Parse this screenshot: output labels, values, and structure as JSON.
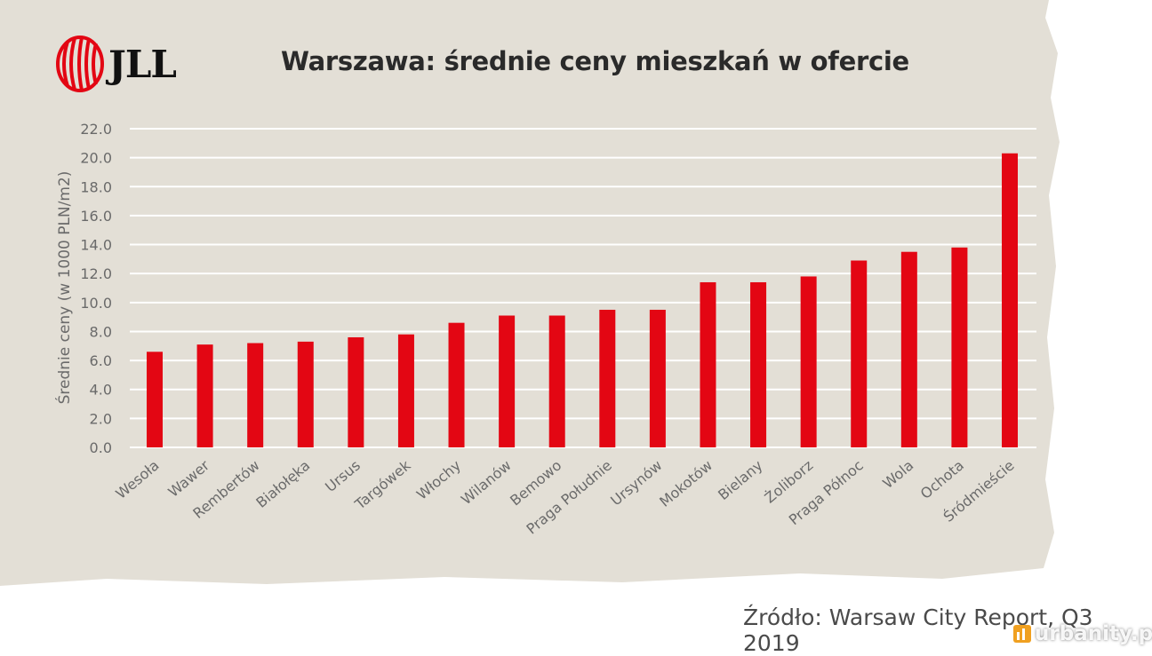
{
  "header": {
    "logo_text": "JLL",
    "title": "Warszawa: średnie ceny mieszkań w ofercie"
  },
  "footer": {
    "source": "Źródło: Warsaw City Report, Q3 2019",
    "watermark": "urbanity.pl"
  },
  "colors": {
    "bar": "#e30613",
    "background": "#e3dfd6",
    "grid": "#ffffff",
    "logo": "#e30613"
  },
  "chart_data": {
    "type": "bar",
    "title": "Warszawa: średnie ceny mieszkań w ofercie",
    "xlabel": "",
    "ylabel": "Średnie ceny (w 1000 PLN/m2)",
    "ylim": [
      0,
      22
    ],
    "yticks": [
      "0.0",
      "2.0",
      "4.0",
      "6.0",
      "8.0",
      "10.0",
      "12.0",
      "14.0",
      "16.0",
      "18.0",
      "20.0",
      "22.0"
    ],
    "grid": true,
    "categories": [
      "Wesoła",
      "Wawer",
      "Rembertów",
      "Białołęka",
      "Ursus",
      "Targówek",
      "Włochy",
      "Wilanów",
      "Bemowo",
      "Praga Południe",
      "Ursynów",
      "Mokotów",
      "Bielany",
      "Żoliborz",
      "Praga Północ",
      "Wola",
      "Ochota",
      "Śródmieście"
    ],
    "values": [
      6.6,
      7.1,
      7.2,
      7.3,
      7.6,
      7.8,
      8.6,
      9.1,
      9.1,
      9.5,
      9.5,
      11.4,
      11.4,
      11.8,
      12.9,
      13.5,
      13.8,
      20.3
    ]
  }
}
